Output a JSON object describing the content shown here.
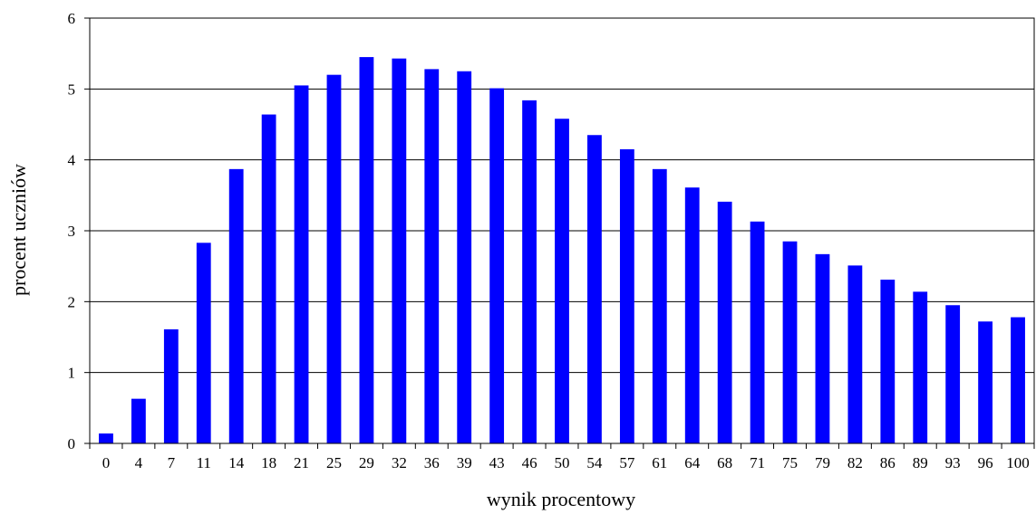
{
  "colors": {
    "bar": "#0000ff",
    "gridline": "#000000",
    "axis": "#000000",
    "background": "#ffffff"
  },
  "chart_data": {
    "type": "bar",
    "title": "",
    "xlabel": "wynik procentowy",
    "ylabel": "procent uczniów",
    "ylim": [
      0,
      6
    ],
    "yticks": [
      0,
      1,
      2,
      3,
      4,
      5,
      6
    ],
    "grid": true,
    "legend": "none",
    "categories": [
      "0",
      "4",
      "7",
      "11",
      "14",
      "18",
      "21",
      "25",
      "29",
      "32",
      "36",
      "39",
      "43",
      "46",
      "50",
      "54",
      "57",
      "61",
      "64",
      "68",
      "71",
      "75",
      "79",
      "82",
      "86",
      "89",
      "93",
      "96",
      "100"
    ],
    "series": [
      {
        "values": [
          0.14,
          0.63,
          1.61,
          2.83,
          3.87,
          4.64,
          5.05,
          5.2,
          5.45,
          5.43,
          5.28,
          5.25,
          5.01,
          4.84,
          4.58,
          4.35,
          4.15,
          3.87,
          3.61,
          3.41,
          3.13,
          2.85,
          2.67,
          2.51,
          2.31,
          2.14,
          1.95,
          1.72,
          1.78
        ]
      }
    ]
  }
}
